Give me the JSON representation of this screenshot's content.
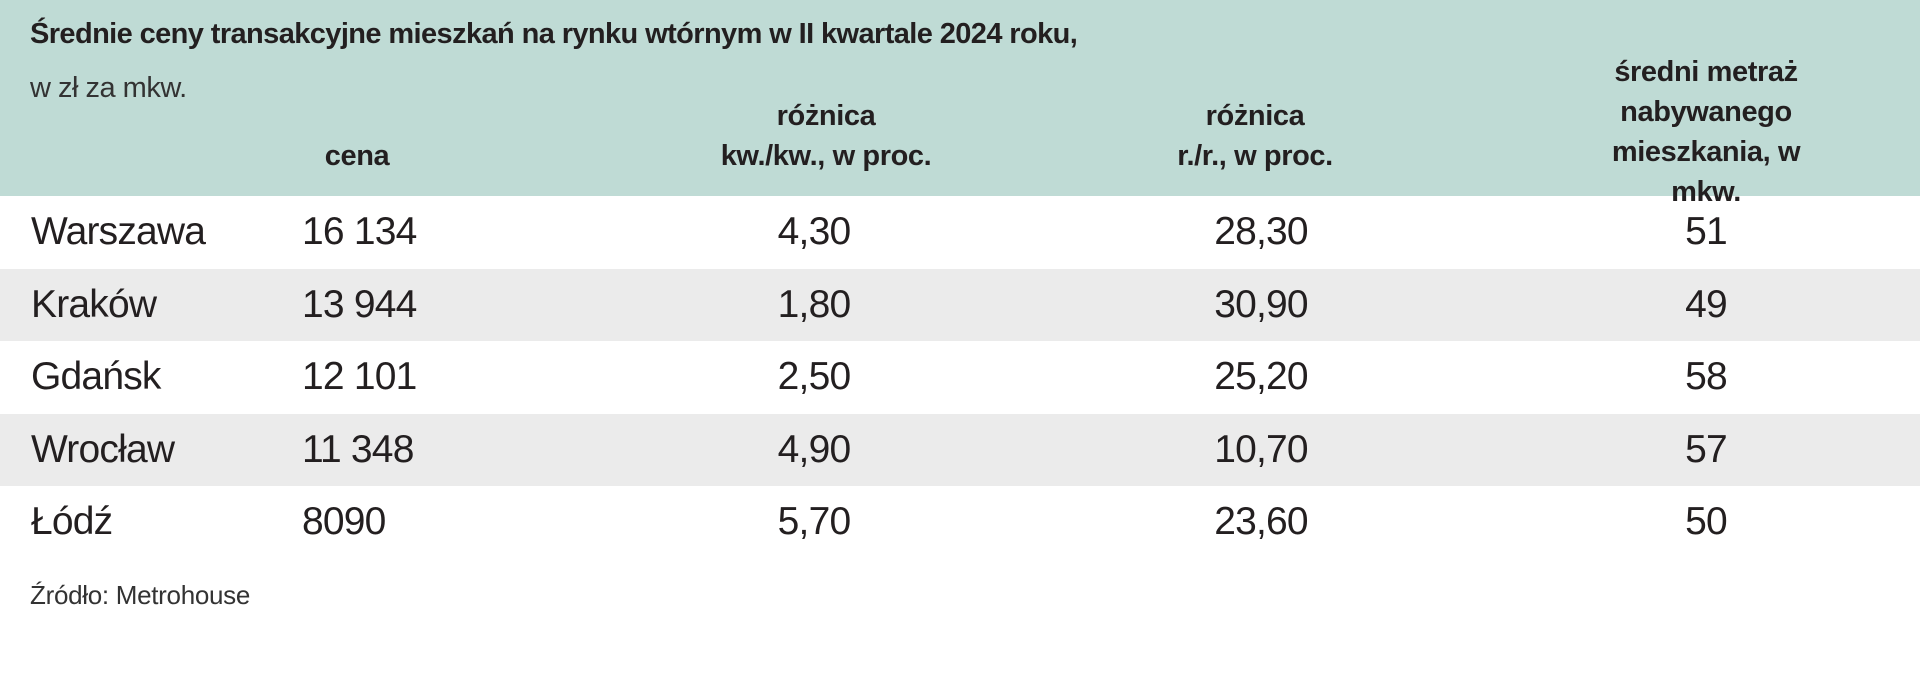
{
  "header": {
    "title": "Średnie ceny transakcyjne mieszkań na rynku wtórnym w II kwartale 2024 roku,",
    "subtitle": "w zł za mkw."
  },
  "table": {
    "columns": [
      "cena",
      "różnica\nkw./kw., w proc.",
      "różnica\nr./r., w proc.",
      "średni metraż\nnabywanego\nmieszkania, w mkw."
    ],
    "rows": [
      [
        "Warszawa",
        "16 134",
        "4,30",
        "28,30",
        "51"
      ],
      [
        "Kraków",
        "13 944",
        "1,80",
        "30,90",
        "49"
      ],
      [
        "Gdańsk",
        "12 101",
        "2,50",
        "25,20",
        "58"
      ],
      [
        "Wrocław",
        "11 348",
        "4,90",
        "10,70",
        "57"
      ],
      [
        "Łódź",
        "8090",
        "5,70",
        "23,60",
        "50"
      ]
    ]
  },
  "source": "Źródło: Metrohouse"
}
